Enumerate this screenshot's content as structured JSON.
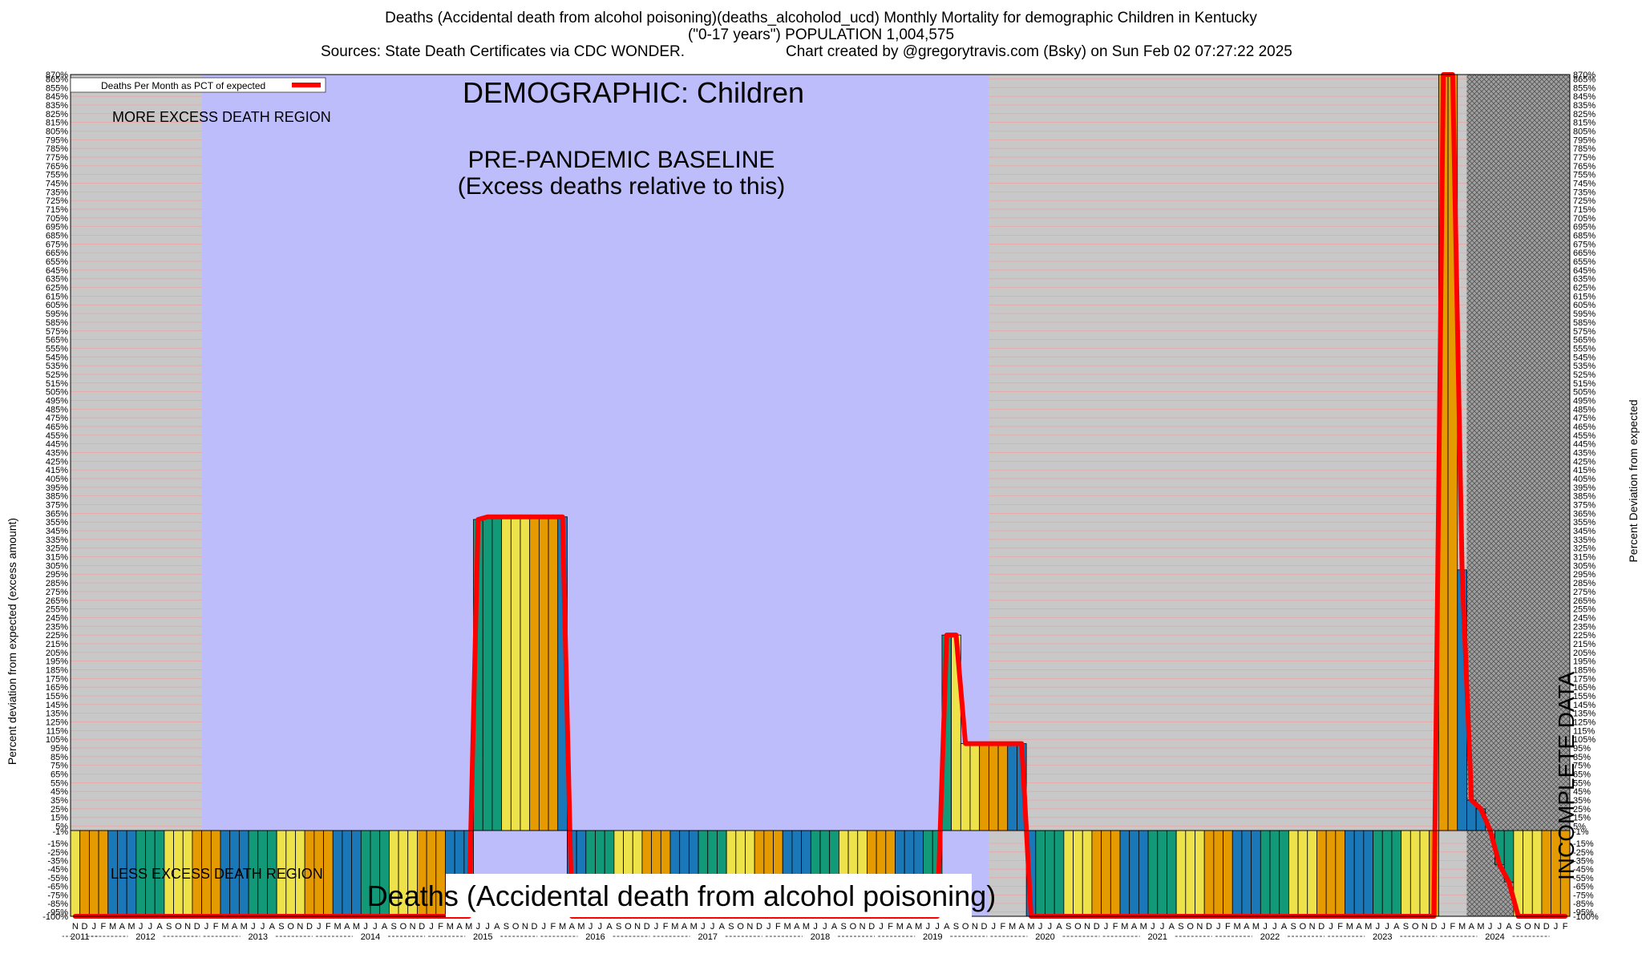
{
  "header": {
    "title_line1": "Deaths (Accidental death from alcohol poisoning)(deaths_alcoholod_ucd) Monthly Mortality for demographic Children in Kentucky",
    "title_line2": "(\"0-17 years\") POPULATION 1,004,575",
    "sources": "Sources: State Death Certificates via CDC WONDER.",
    "credit": "Chart created by @gregorytravis.com (Bsky) on Sun Feb 02 07:27:22 2025"
  },
  "annotations": {
    "demographic": "DEMOGRAPHIC: Children",
    "baseline_line1": "PRE-PANDEMIC BASELINE",
    "baseline_line2": "(Excess deaths relative to this)",
    "more_excess": "MORE EXCESS DEATH REGION",
    "less_excess": "LESS EXCESS DEATH REGION",
    "incomplete": "INCOMPLETE DATA",
    "bottom_label": "Deaths (Accidental death from alcohol poisoning)"
  },
  "legend": {
    "entry": "Deaths Per Month as PCT of expected",
    "position": "top-left"
  },
  "colors": {
    "baseline_region": "#bdbdfb",
    "grey_region": "#c8c8c8",
    "grid_line": "#f2a0a0",
    "line": "#ff0000",
    "season_winter": "#e59b00",
    "season_spring": "#1a78b8",
    "season_summer": "#129a78",
    "season_autumn": "#eee24a"
  },
  "chart_data": {
    "type": "bar",
    "ylabel_left": "Percent deviation from expected (excess amount)",
    "ylabel_right": "Percent Deviation from expected",
    "ylim": [
      -100,
      870
    ],
    "y_ticks": [
      870,
      865,
      855,
      845,
      835,
      825,
      815,
      805,
      795,
      785,
      775,
      765,
      755,
      745,
      735,
      725,
      715,
      705,
      695,
      685,
      675,
      665,
      655,
      645,
      635,
      625,
      615,
      605,
      595,
      585,
      575,
      565,
      555,
      545,
      535,
      525,
      515,
      505,
      495,
      485,
      475,
      465,
      455,
      445,
      435,
      425,
      415,
      405,
      395,
      385,
      375,
      365,
      355,
      345,
      335,
      325,
      315,
      305,
      295,
      285,
      275,
      265,
      255,
      245,
      235,
      225,
      215,
      205,
      195,
      185,
      175,
      165,
      155,
      145,
      135,
      125,
      115,
      105,
      95,
      85,
      75,
      65,
      55,
      45,
      35,
      25,
      15,
      5,
      -1,
      -15,
      -25,
      -35,
      -45,
      -55,
      -65,
      -75,
      -85,
      -95,
      -100
    ],
    "start_year": 2011,
    "start_month": 11,
    "month_letters": [
      "J",
      "F",
      "M",
      "A",
      "M",
      "J",
      "J",
      "A",
      "S",
      "O",
      "N",
      "D"
    ],
    "year_labels": [
      "2011",
      "2012",
      "2013",
      "2014",
      "2015",
      "2016",
      "2017",
      "2018",
      "2019",
      "2020",
      "2021",
      "2022",
      "2023",
      "2024"
    ],
    "baseline_period": [
      "2013-01",
      "2019-12"
    ],
    "incomplete_period": [
      "2024-04",
      "2024-12"
    ],
    "grid": true,
    "series": [
      {
        "name": "Deaths Per Month as PCT of expected",
        "values": [
          -100,
          -100,
          -100,
          -100,
          -100,
          -100,
          -100,
          -100,
          -100,
          -100,
          -100,
          -100,
          -100,
          -100,
          -100,
          -100,
          -100,
          -100,
          -100,
          -100,
          -100,
          -100,
          -100,
          -100,
          -100,
          -100,
          -100,
          -100,
          -100,
          -100,
          -100,
          -100,
          -100,
          -100,
          -100,
          -100,
          -100,
          -100,
          -100,
          -100,
          -100,
          -100,
          -100,
          358,
          361,
          361,
          361,
          361,
          361,
          361,
          361,
          361,
          361,
          -100,
          -100,
          -100,
          -100,
          -100,
          -100,
          -100,
          -100,
          -100,
          -100,
          -100,
          -100,
          -100,
          -100,
          -100,
          -100,
          -100,
          -100,
          -100,
          -100,
          -100,
          -100,
          -100,
          -100,
          -100,
          -100,
          -100,
          -100,
          -100,
          -100,
          -100,
          -100,
          -100,
          -100,
          -100,
          -100,
          -100,
          -100,
          -100,
          -100,
          225,
          225,
          100,
          100,
          100,
          100,
          100,
          100,
          100,
          -100,
          -100,
          -100,
          -100,
          -100,
          -100,
          -100,
          -100,
          -100,
          -100,
          -100,
          -100,
          -100,
          -100,
          -100,
          -100,
          -100,
          -100,
          -100,
          -100,
          -100,
          -100,
          -100,
          -100,
          -100,
          -100,
          -100,
          -100,
          -100,
          -100,
          -100,
          -100,
          -100,
          -100,
          -100,
          -100,
          -100,
          -100,
          -100,
          -100,
          -100,
          -100,
          -100,
          -100,
          870,
          870,
          300,
          35,
          25,
          0,
          -40,
          -60,
          -100,
          -100,
          -100,
          -100,
          -100,
          -100
        ]
      }
    ]
  }
}
